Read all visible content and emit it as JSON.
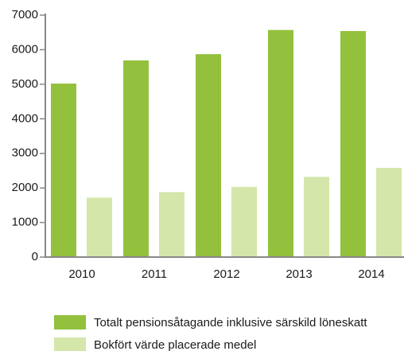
{
  "chart_data": {
    "type": "bar",
    "categories": [
      "2010",
      "2011",
      "2012",
      "2013",
      "2014"
    ],
    "series": [
      {
        "name": "Totalt pensionsåtagande inklusive särskild löneskatt",
        "color": "#93c13e",
        "values": [
          5020,
          5690,
          5870,
          6570,
          6540
        ]
      },
      {
        "name": "Bokfört värde placerade medel",
        "color": "#d4e6aa",
        "values": [
          1720,
          1880,
          2030,
          2320,
          2580
        ]
      }
    ],
    "ylim": [
      0,
      7000
    ],
    "yticks": [
      0,
      1000,
      2000,
      3000,
      4000,
      5000,
      6000,
      7000
    ],
    "grid": false,
    "legend": "bottom"
  }
}
